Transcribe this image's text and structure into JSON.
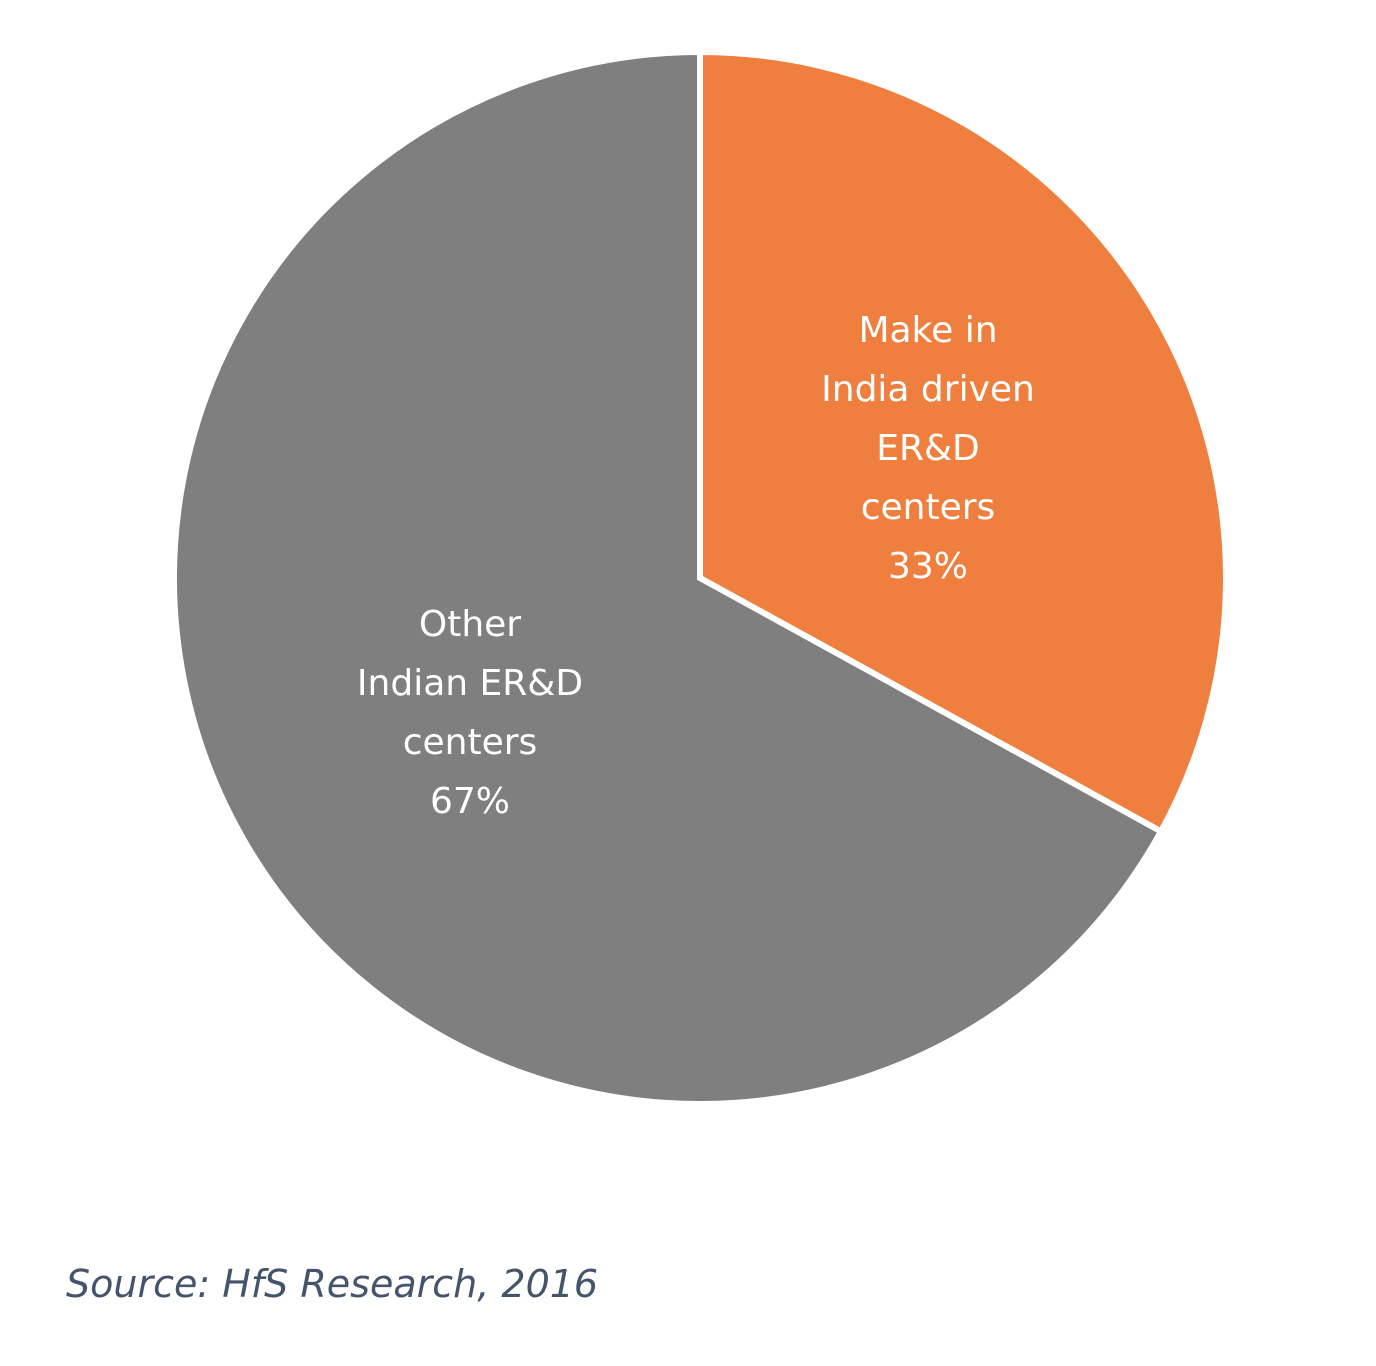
{
  "chart_data": {
    "type": "pie",
    "slices": [
      {
        "label_lines": [
          "Make in",
          "India driven",
          "ER&D",
          "centers",
          "33%"
        ],
        "value": 33,
        "color": "#ef7f3e"
      },
      {
        "label_lines": [
          "Other",
          "Indian ER&D",
          "centers",
          "67%"
        ],
        "value": 67,
        "color": "#7f7f7f"
      }
    ],
    "start_angle": "12 o'clock",
    "direction": "clockwise",
    "legend": "none"
  },
  "source": "Source: HfS Research, 2016"
}
